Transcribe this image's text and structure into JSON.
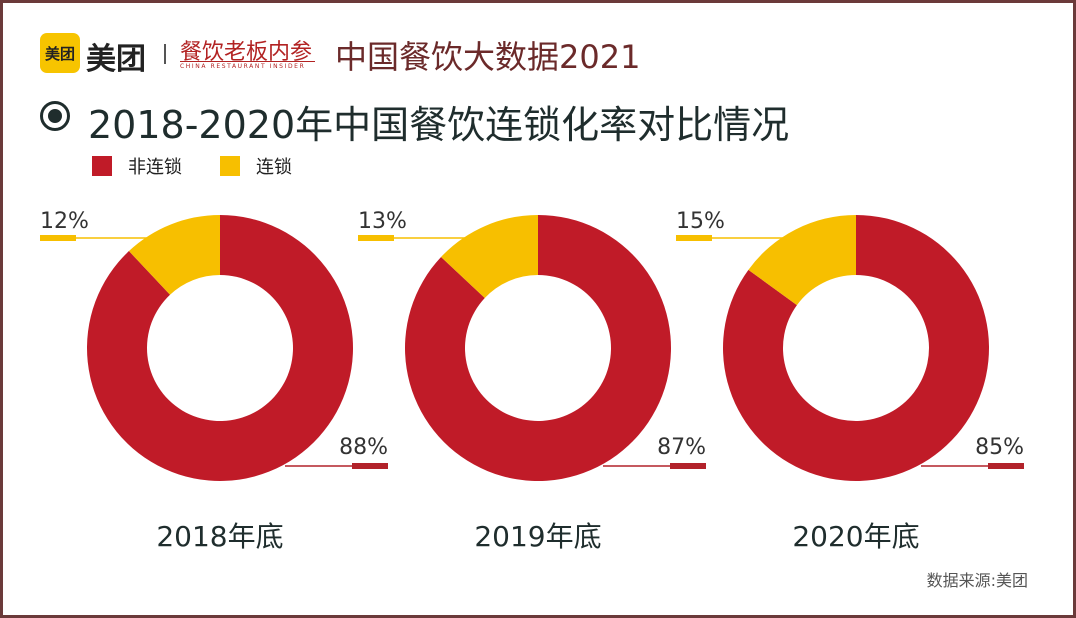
{
  "header": {
    "logo_badge": "美团",
    "logo_text": "美团",
    "brand2": "餐饮老板内参",
    "brand2_sub": "CHINA RESTAURANT INSIDER",
    "title": "中国餐饮大数据2021"
  },
  "colors": {
    "non_chain": "#c01b28",
    "chain": "#f7bf00",
    "title": "#1f2d2d",
    "frame": "#6b3a3a"
  },
  "source": "数据来源:美团",
  "chart_data": {
    "type": "pie",
    "variant": "donut",
    "title": "2018-2020年中国餐饮连锁化率对比情况",
    "legend": [
      "非连锁",
      "连锁"
    ],
    "legend_placement": "top-left",
    "charts": [
      {
        "label": "2018年底",
        "values": {
          "非连锁": 88,
          "连锁": 12
        },
        "labels": {
          "非连锁": "88%",
          "连锁": "12%"
        }
      },
      {
        "label": "2019年底",
        "values": {
          "非连锁": 87,
          "连锁": 13
        },
        "labels": {
          "非连锁": "87%",
          "连锁": "13%"
        }
      },
      {
        "label": "2020年底",
        "values": {
          "非连锁": 85,
          "连锁": 15
        },
        "labels": {
          "非连锁": "85%",
          "连锁": "15%"
        }
      }
    ]
  }
}
